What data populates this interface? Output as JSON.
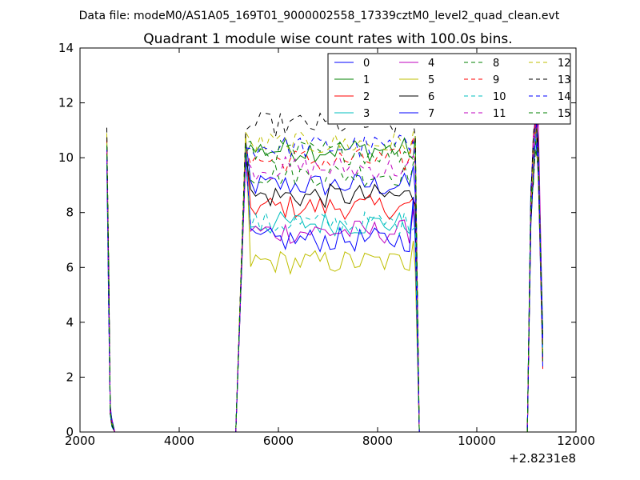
{
  "chart_data": {
    "type": "line",
    "suptitle": "Data file: modeM0/AS1A05_169T01_9000002558_17339cztM0_level2_quad_clean.evt",
    "title": "Quadrant 1 module wise count rates with 100.0s bins.",
    "xlabel": "",
    "ylabel": "",
    "x_offset_label": "+2.8231e8",
    "xlim": [
      2000,
      12000
    ],
    "ylim": [
      0,
      14
    ],
    "xticks": [
      2000,
      4000,
      6000,
      8000,
      10000,
      12000
    ],
    "yticks": [
      0,
      2,
      4,
      6,
      8,
      10,
      12,
      14
    ],
    "xtick_labels": [
      "2000",
      "4000",
      "6000",
      "8000",
      "10000",
      "12000"
    ],
    "ytick_labels": [
      "0",
      "2",
      "4",
      "6",
      "8",
      "10",
      "12",
      "14"
    ],
    "grid": false,
    "legend_position": "top-right",
    "series": [
      {
        "name": "0",
        "color": "#0000ff",
        "dash": "solid",
        "base": 9.0,
        "start": 10.6,
        "end": 9.5
      },
      {
        "name": "1",
        "color": "#008000",
        "dash": "solid",
        "base": 10.3,
        "start": 10.4,
        "end": 10.0
      },
      {
        "name": "2",
        "color": "#ff0000",
        "dash": "solid",
        "base": 8.2,
        "start": 10.2,
        "end": 8.4
      },
      {
        "name": "3",
        "color": "#00bfbf",
        "dash": "solid",
        "base": 7.6,
        "start": 10.0,
        "end": 8.0
      },
      {
        "name": "4",
        "color": "#bf00bf",
        "dash": "solid",
        "base": 7.3,
        "start": 10.1,
        "end": 8.2
      },
      {
        "name": "5",
        "color": "#bfbf00",
        "dash": "solid",
        "base": 6.2,
        "start": 10.7,
        "end": 7.3
      },
      {
        "name": "6",
        "color": "#000000",
        "dash": "solid",
        "base": 8.6,
        "start": 10.3,
        "end": 8.6
      },
      {
        "name": "7",
        "color": "#0000ff",
        "dash": "solid",
        "base": 7.0,
        "start": 10.1,
        "end": 8.3
      },
      {
        "name": "8",
        "color": "#008000",
        "dash": "dashed",
        "base": 9.4,
        "start": 10.4,
        "end": 9.8
      },
      {
        "name": "9",
        "color": "#ff0000",
        "dash": "dashed",
        "base": 9.9,
        "start": 10.6,
        "end": 10.6
      },
      {
        "name": "10",
        "color": "#00bfbf",
        "dash": "dashed",
        "base": 7.6,
        "start": 10.2,
        "end": 7.8
      },
      {
        "name": "11",
        "color": "#bf00bf",
        "dash": "dashed",
        "base": 9.6,
        "start": 10.2,
        "end": 9.8
      },
      {
        "name": "12",
        "color": "#bfbf00",
        "dash": "dashed",
        "base": 10.5,
        "start": 10.7,
        "end": 10.8
      },
      {
        "name": "13",
        "color": "#000000",
        "dash": "dashed",
        "base": 11.2,
        "start": 10.9,
        "end": 11.3
      },
      {
        "name": "14",
        "color": "#0000ff",
        "dash": "dashed",
        "base": 10.4,
        "start": 10.3,
        "end": 10.8
      },
      {
        "name": "15",
        "color": "#008000",
        "dash": "dashed",
        "base": 10.2,
        "start": 10.5,
        "end": 10.2
      }
    ]
  }
}
